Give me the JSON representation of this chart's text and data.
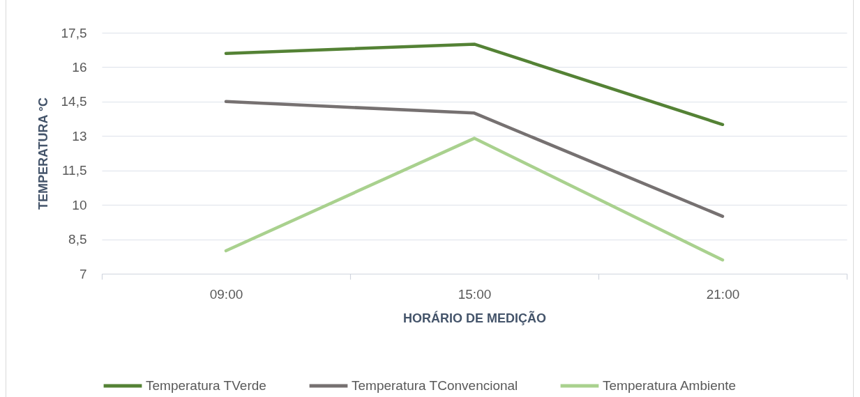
{
  "chart_data": {
    "type": "line",
    "xlabel": "HORÁRIO DE MEDIÇÃO",
    "ylabel": "TEMPERATURA °C",
    "categories": [
      "09:00",
      "15:00",
      "21:00"
    ],
    "series": [
      {
        "name": "Temperatura TVerde",
        "color": "#548235",
        "values": [
          16.6,
          17.0,
          13.5
        ]
      },
      {
        "name": "Temperatura TConvencional",
        "color": "#767171",
        "values": [
          14.5,
          14.0,
          9.5
        ]
      },
      {
        "name": "Temperatura Ambiente",
        "color": "#a9d18e",
        "values": [
          8.0,
          12.9,
          7.6
        ]
      }
    ],
    "ylim": [
      7,
      17.5
    ],
    "yticks": [
      7,
      {
        "value": 8.5,
        "label": "8,5"
      },
      10,
      {
        "value": 11.5,
        "label": "11,5"
      },
      13,
      {
        "value": 14.5,
        "label": "14,5"
      },
      16,
      {
        "value": 17.5,
        "label": "17,5"
      }
    ],
    "grid": "y",
    "legend": "bottom"
  }
}
